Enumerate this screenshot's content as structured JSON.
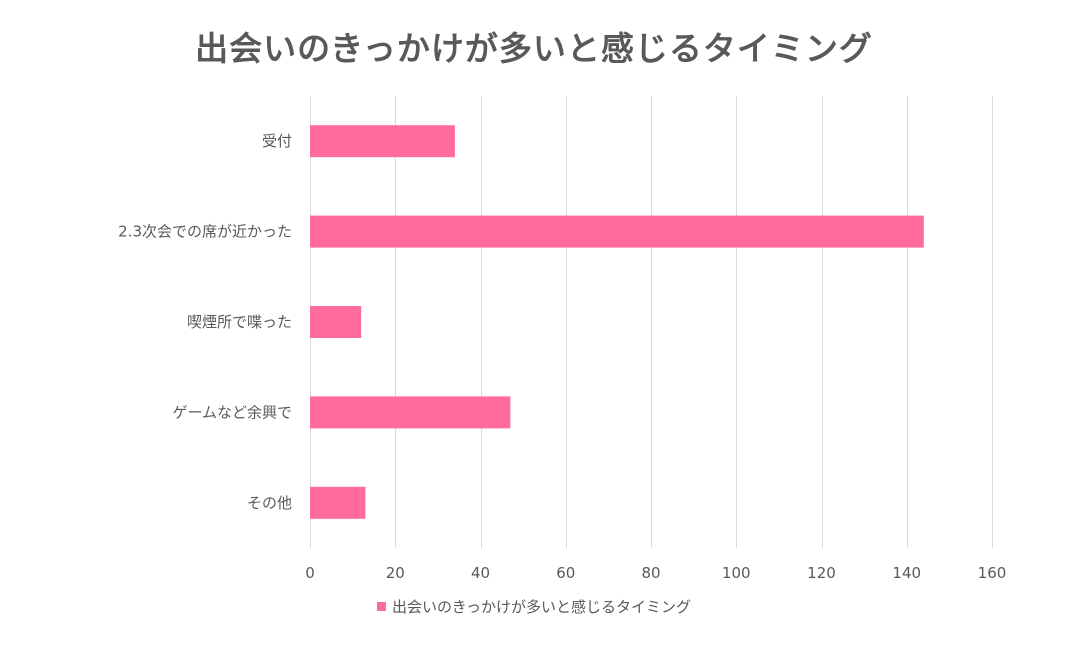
{
  "chart_data": {
    "type": "bar",
    "orientation": "horizontal",
    "title": "出会いのきっかけが多いと感じるタイミング",
    "categories": [
      "受付",
      "2.3次会での席が近かった",
      "喫煙所で喋った",
      "ゲームなど余興で",
      "その他"
    ],
    "series": [
      {
        "name": "出会いのきっかけが多いと感じるタイミング",
        "values": [
          34,
          144,
          12,
          47,
          13
        ],
        "color": "#ff6b9a"
      }
    ],
    "xlim": [
      0,
      160
    ],
    "xticks": [
      0,
      20,
      40,
      60,
      80,
      100,
      120,
      140,
      160
    ],
    "grid": true,
    "legend_position": "bottom"
  }
}
